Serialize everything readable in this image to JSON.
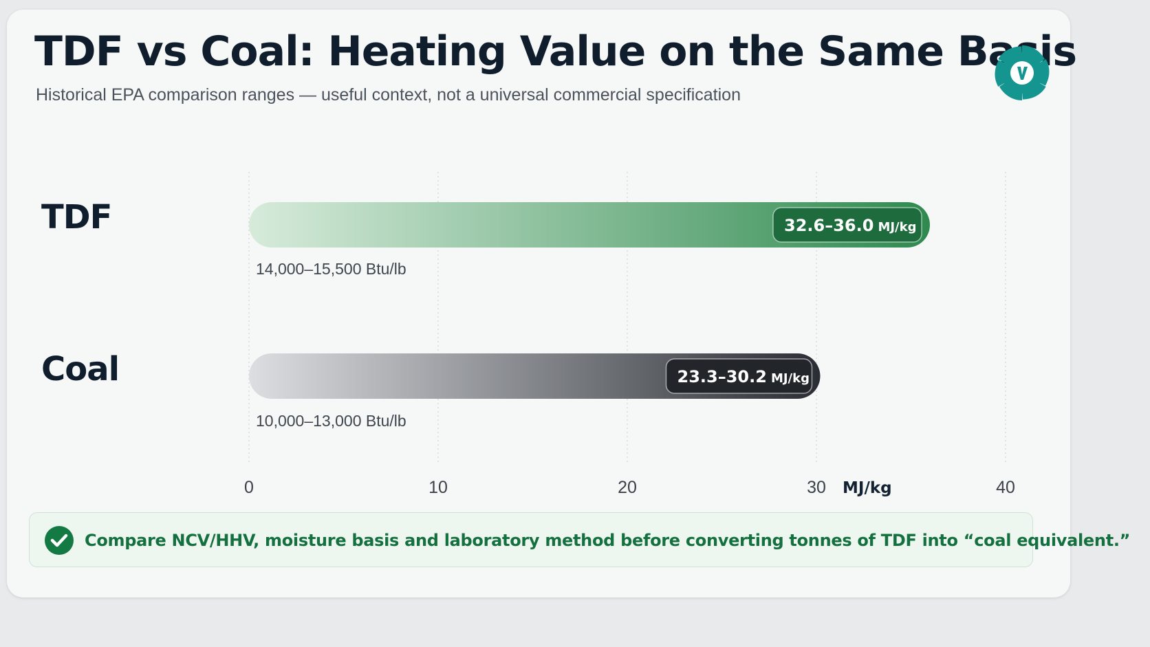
{
  "header": {
    "title": "TDF vs Coal: Heating Value on the Same Basis",
    "subtitle": "Historical EPA comparison ranges — useful context, not a universal commercial specification"
  },
  "logo": {
    "icon": "gear-logo-icon",
    "color": "#14958f"
  },
  "chart_data": {
    "type": "bar",
    "orientation": "horizontal",
    "unit": "MJ/kg",
    "xlim": [
      0,
      40
    ],
    "x_ticks": [
      "0",
      "10",
      "20",
      "30",
      "40"
    ],
    "x_unit_label": "MJ/kg",
    "grid": "vertical-dotted",
    "series": [
      {
        "category": "TDF",
        "range": [
          32.6,
          36.0
        ],
        "value": 36.0,
        "label_range": "32.6–36.0",
        "label_unit": "MJ/kg",
        "btu_label": "14,000–15,500 Btu/lb",
        "color": "#2f8a4f",
        "color_light": "#d7ebdb"
      },
      {
        "category": "Coal",
        "range": [
          23.3,
          30.2
        ],
        "value": 30.2,
        "label_range": "23.3–30.2",
        "label_unit": "MJ/kg",
        "btu_label": "10,000–13,000 Btu/lb",
        "color": "#2a2e34",
        "color_light": "#dcdee1"
      }
    ]
  },
  "callout": {
    "icon": "check-circle-icon",
    "text": "Compare NCV/HHV, moisture basis and laboratory method before converting tonnes of TDF into “coal equivalent.”",
    "color": "#157040"
  }
}
